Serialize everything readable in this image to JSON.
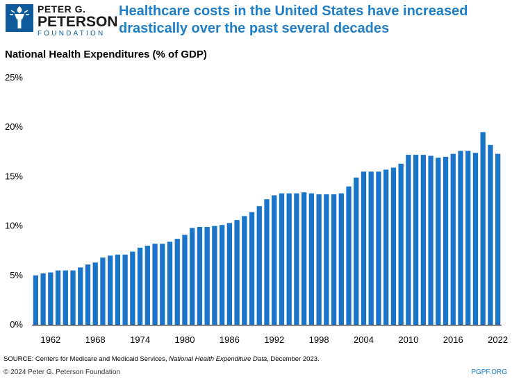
{
  "logo": {
    "line1": "PETER G.",
    "line2": "PETERSON",
    "line3": "FOUNDATION"
  },
  "headline": "Healthcare costs in the United States have increased drastically over the past several decades",
  "chart_data": {
    "type": "bar",
    "title": "National Health Expenditures (% of GDP)",
    "color": "#1a75c9",
    "ylim": [
      0,
      25
    ],
    "yticks": [
      0,
      5,
      10,
      15,
      20,
      25
    ],
    "ytick_labels": [
      "0%",
      "5%",
      "10%",
      "15%",
      "20%",
      "25%"
    ],
    "xtick_labels": [
      "1962",
      "1968",
      "1974",
      "1980",
      "1986",
      "1992",
      "1998",
      "2004",
      "2010",
      "2016",
      "2022"
    ],
    "categories": [
      "1960",
      "1961",
      "1962",
      "1963",
      "1964",
      "1965",
      "1966",
      "1967",
      "1968",
      "1969",
      "1970",
      "1971",
      "1972",
      "1973",
      "1974",
      "1975",
      "1976",
      "1977",
      "1978",
      "1979",
      "1980",
      "1981",
      "1982",
      "1983",
      "1984",
      "1985",
      "1986",
      "1987",
      "1988",
      "1989",
      "1990",
      "1991",
      "1992",
      "1993",
      "1994",
      "1995",
      "1996",
      "1997",
      "1998",
      "1999",
      "2000",
      "2001",
      "2002",
      "2003",
      "2004",
      "2005",
      "2006",
      "2007",
      "2008",
      "2009",
      "2010",
      "2011",
      "2012",
      "2013",
      "2014",
      "2015",
      "2016",
      "2017",
      "2018",
      "2019",
      "2020",
      "2021",
      "2022"
    ],
    "values": [
      5.0,
      5.2,
      5.3,
      5.5,
      5.5,
      5.5,
      5.8,
      6.1,
      6.3,
      6.8,
      7.0,
      7.1,
      7.1,
      7.4,
      7.8,
      8.0,
      8.2,
      8.2,
      8.4,
      8.7,
      9.1,
      9.8,
      9.9,
      9.9,
      10.0,
      10.1,
      10.3,
      10.6,
      11.0,
      11.4,
      12.0,
      12.7,
      13.1,
      13.3,
      13.3,
      13.3,
      13.4,
      13.3,
      13.2,
      13.2,
      13.2,
      13.3,
      14.0,
      14.9,
      15.5,
      15.5,
      15.5,
      15.7,
      15.9,
      16.3,
      17.2,
      17.2,
      17.2,
      17.1,
      16.9,
      17.0,
      17.3,
      17.6,
      17.6,
      17.4,
      19.5,
      18.2,
      17.3
    ]
  },
  "footer": {
    "source_prefix": "SOURCE: Centers for Medicare and Medicaid Services, ",
    "source_italic": "National Health Expenditure Data",
    "source_suffix": ", December 2023.",
    "copyright": "© 2024 Peter G. Peterson Foundation",
    "site": "PGPF.ORG"
  }
}
